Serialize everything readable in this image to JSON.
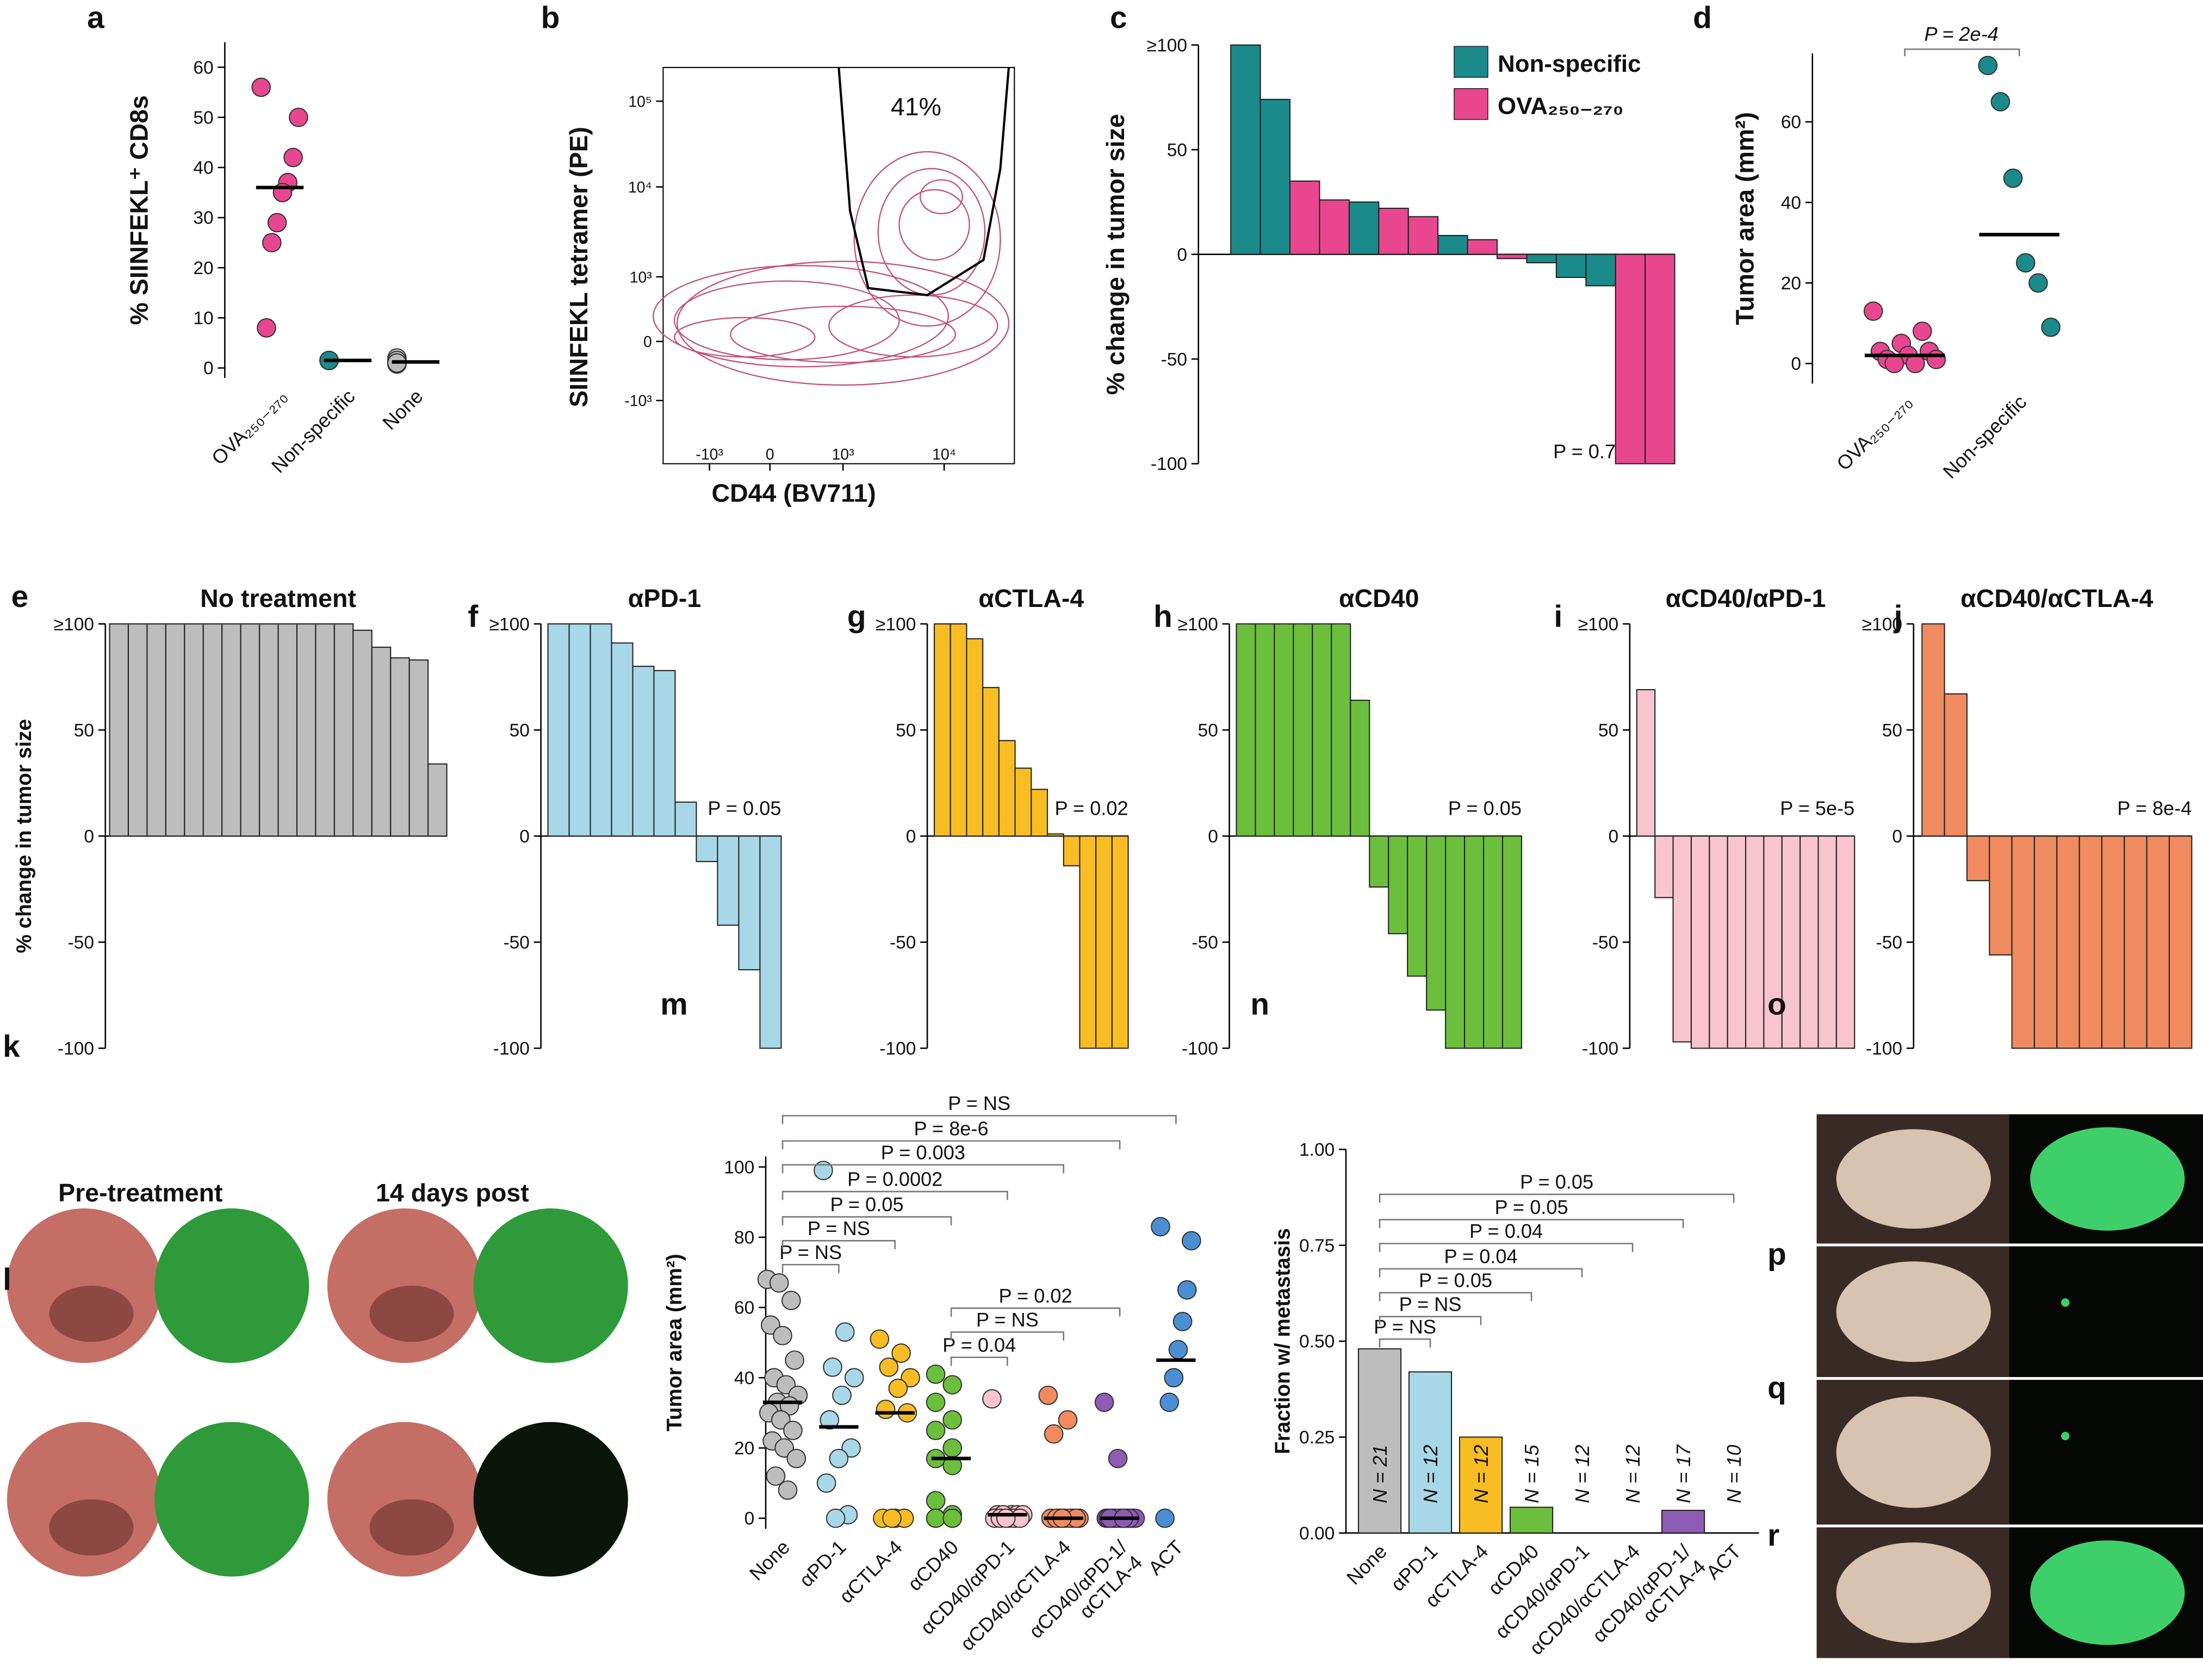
{
  "chart_data": [
    {
      "type": "strip",
      "panel": "a",
      "ylabel": "% SIINFEKL⁺ CD8s",
      "categories": [
        "OVA₂₅₀₋₂₇₀",
        "Non-specific",
        "None"
      ],
      "values": [
        [
          56,
          50,
          42,
          37,
          35,
          29,
          25,
          8
        ],
        [
          1.5,
          1.5,
          1.5,
          1.5,
          1.5,
          1.5,
          1.5
        ],
        [
          1.5,
          0.8,
          0.8,
          1.2,
          2,
          1.5,
          1
        ]
      ],
      "medians": [
        36,
        1.5,
        1.2
      ],
      "colors": [
        "#e8478f",
        "#1a8a8a",
        "#bdbdbd"
      ],
      "ylim": [
        -2,
        65
      ],
      "yticks": [
        0,
        10,
        20,
        30,
        40,
        50,
        60
      ]
    },
    {
      "type": "contour",
      "panel": "b",
      "ylabel": "SIINFEKL tetramer (PE)",
      "xlabel": "CD44 (BV711)",
      "annotation": "41%",
      "yticks": [
        {
          "value": 100000,
          "label": "10⁵"
        },
        {
          "value": 10000,
          "label": "10⁴"
        },
        {
          "value": 1000,
          "label": "10³"
        },
        0,
        {
          "value": -1000,
          "label": "-10³"
        }
      ],
      "xticks": [
        {
          "value": -1000,
          "label": "-10³"
        },
        0,
        {
          "value": 1000,
          "label": "10³"
        },
        {
          "value": 10000,
          "label": "10⁴"
        }
      ]
    },
    {
      "type": "waterfall",
      "panel": "c",
      "ylabel": "% change in tumor size",
      "series": [
        {
          "name": "Non-specific",
          "color": "#1a8a8a",
          "values": [
            100,
            74,
            null,
            null,
            25,
            null,
            null,
            9,
            null,
            null,
            -4,
            -11,
            -15,
            null,
            null
          ]
        },
        {
          "name": "OVA₂₅₀₋₂₇₀",
          "color": "#e8478f",
          "values": [
            null,
            null,
            35,
            26,
            null,
            22,
            18,
            null,
            7,
            -2,
            null,
            null,
            null,
            -100,
            -100
          ]
        }
      ],
      "ylim": [
        -100,
        100
      ],
      "yticks": [
        {
          "value": 100,
          "label": "≥100"
        },
        50,
        0,
        -50,
        -100
      ],
      "annotation": "P = 0.7",
      "legend": "top-right"
    },
    {
      "type": "strip",
      "panel": "d",
      "ylabel": "Tumor area (mm²)",
      "annotation": "P = 2e-4",
      "categories": [
        "OVA₂₅₀₋₂₇₀",
        "Non-specific"
      ],
      "values": [
        [
          13,
          8,
          5,
          3,
          3,
          2,
          1,
          1,
          0,
          0
        ],
        [
          74,
          65,
          46,
          25,
          20,
          9
        ]
      ],
      "medians": [
        2,
        32
      ],
      "colors": [
        "#e8478f",
        "#1a8a8a"
      ],
      "ylim": [
        -5,
        77
      ],
      "yticks": [
        0,
        20,
        40,
        60
      ]
    },
    {
      "type": "waterfall",
      "panel": "e",
      "title": "No treatment",
      "ylabel": "% change in tumor size",
      "color": "#bdbdbd",
      "values": [
        100,
        100,
        100,
        100,
        100,
        100,
        100,
        100,
        100,
        100,
        100,
        100,
        100,
        97,
        89,
        84,
        83,
        34
      ],
      "ylim": [
        -100,
        100
      ],
      "yticks": [
        {
          "value": 100,
          "label": "≥100"
        },
        50,
        0,
        -50,
        -100
      ]
    },
    {
      "type": "waterfall",
      "panel": "f",
      "title": "αPD-1",
      "color": "#a8d8e8",
      "annotation": "P = 0.05",
      "values": [
        100,
        100,
        100,
        91,
        80,
        78,
        16,
        -12,
        -42,
        -63,
        -100
      ],
      "ylim": [
        -100,
        100
      ],
      "yticks": [
        {
          "value": 100,
          "label": "≥100"
        },
        50,
        0,
        -50,
        -100
      ]
    },
    {
      "type": "waterfall",
      "panel": "g",
      "title": "αCTLA-4",
      "color": "#f7bd23",
      "annotation": "P = 0.02",
      "values": [
        100,
        100,
        93,
        70,
        45,
        32,
        22,
        1,
        -14,
        -100,
        -100,
        -100
      ],
      "ylim": [
        -100,
        100
      ],
      "yticks": [
        {
          "value": 100,
          "label": "≥100"
        },
        50,
        0,
        -50,
        -100
      ]
    },
    {
      "type": "waterfall",
      "panel": "h",
      "title": "αCD40",
      "color": "#6cbf3c",
      "annotation": "P = 0.05",
      "values": [
        100,
        100,
        100,
        100,
        100,
        100,
        64,
        -24,
        -46,
        -66,
        -82,
        -100,
        -100,
        -100,
        -100
      ],
      "ylim": [
        -100,
        100
      ],
      "yticks": [
        {
          "value": 100,
          "label": "≥100"
        },
        50,
        0,
        -50,
        -100
      ]
    },
    {
      "type": "waterfall",
      "panel": "i",
      "title": "αCD40/αPD-1",
      "color": "#f7c4cf",
      "annotation": "P = 5e-5",
      "values": [
        69,
        -29,
        -97,
        -100,
        -100,
        -100,
        -100,
        -100,
        -100,
        -100,
        -100,
        -100
      ],
      "ylim": [
        -100,
        100
      ],
      "yticks": [
        {
          "value": 100,
          "label": "≥100"
        },
        50,
        0,
        -50,
        -100
      ]
    },
    {
      "type": "waterfall",
      "panel": "j",
      "title": "αCD40/αCTLA-4",
      "color": "#f08b5f",
      "annotation": "P = 8e-4",
      "values": [
        100,
        67,
        -21,
        -56,
        -100,
        -100,
        -100,
        -100,
        -100,
        -100,
        -100,
        -100
      ],
      "ylim": [
        -100,
        100
      ],
      "yticks": [
        {
          "value": 100,
          "label": "≥100"
        },
        50,
        0,
        -50,
        -100
      ]
    },
    {
      "type": "image",
      "panel": "k",
      "captions": [
        "Pre-treatment",
        "14 days post"
      ]
    },
    {
      "type": "image",
      "panel": "l"
    },
    {
      "type": "strip",
      "panel": "m",
      "ylabel": "Tumor area (mm²)",
      "categories": [
        "None",
        "αPD-1",
        "αCTLA-4",
        "αCD40",
        "αCD40/αPD-1",
        "αCD40/αCTLA-4",
        "αCD40/αPD-1/\nαCTLA-4",
        "ACT"
      ],
      "values": [
        [
          68,
          67,
          62,
          55,
          52,
          45,
          40,
          38,
          35,
          33,
          32,
          30,
          28,
          25,
          22,
          20,
          17,
          12,
          8
        ],
        [
          99,
          53,
          43,
          40,
          35,
          28,
          20,
          17,
          10,
          1,
          0
        ],
        [
          51,
          47,
          43,
          40,
          37,
          31,
          30,
          0,
          0,
          0,
          0
        ],
        [
          41,
          38,
          33,
          28,
          25,
          20,
          17,
          15,
          5,
          1,
          0,
          0,
          0,
          0
        ],
        [
          34,
          1,
          1,
          1,
          1,
          1,
          0,
          0,
          0,
          0,
          0,
          0
        ],
        [
          35,
          28,
          24,
          0,
          0,
          0,
          0,
          0,
          0,
          0,
          0,
          0
        ],
        [
          33,
          17,
          0,
          0,
          0,
          0,
          0,
          0,
          0,
          0,
          0,
          0,
          0,
          0,
          0,
          0,
          0
        ],
        [
          83,
          79,
          65,
          56,
          48,
          40,
          33,
          0
        ]
      ],
      "medians": [
        33,
        26,
        30,
        17,
        1,
        0,
        0,
        45
      ],
      "colors": [
        "#bdbdbd",
        "#a8d8e8",
        "#f7bd23",
        "#6cbf3c",
        "#f7c4cf",
        "#f08b5f",
        "#8e5bb5",
        "#4a8fd4"
      ],
      "ylim": [
        -3,
        103
      ],
      "yticks": [
        0,
        20,
        40,
        60,
        80,
        100
      ],
      "comparisons": [
        "P = NS",
        "P = NS",
        "P = 0.05",
        "P = 0.0002",
        "P = 0.003",
        "P = 8e-6",
        "P = NS",
        "P = 0.04",
        "P = NS",
        "P = 0.02"
      ]
    },
    {
      "type": "bar",
      "panel": "n",
      "ylabel": "Fraction w/ metastasis",
      "categories": [
        "None",
        "αPD-1",
        "αCTLA-4",
        "αCD40",
        "αCD40/αPD-1",
        "αCD40/αCTLA-4",
        "αCD40/αPD-1/\nαCTLA-4",
        "ACT"
      ],
      "values": [
        0.48,
        0.42,
        0.25,
        0.067,
        0,
        0,
        0.059,
        0
      ],
      "annotations": [
        "N = 21",
        "N = 12",
        "N = 12",
        "N = 15",
        "N = 12",
        "N = 12",
        "N = 17",
        "N = 10"
      ],
      "colors": [
        "#bdbdbd",
        "#a8d8e8",
        "#f7bd23",
        "#6cbf3c",
        "#f7c4cf",
        "#f08b5f",
        "#8e5bb5",
        "#4a8fd4"
      ],
      "ylim": [
        0,
        1
      ],
      "yticks": [
        {
          "value": 0,
          "label": "0.00"
        },
        {
          "value": 0.25,
          "label": "0.25"
        },
        {
          "value": 0.5,
          "label": "0.50"
        },
        {
          "value": 0.75,
          "label": "0.75"
        },
        {
          "value": 1,
          "label": "1.00"
        }
      ],
      "comparisons": [
        "P = NS",
        "P = NS",
        "P = 0.05",
        "P = 0.04",
        "P = 0.04",
        "P = 0.05",
        "P = 0.05"
      ]
    },
    {
      "type": "image",
      "panel": "o"
    },
    {
      "type": "image",
      "panel": "p"
    },
    {
      "type": "image",
      "panel": "q"
    },
    {
      "type": "image",
      "panel": "r"
    }
  ]
}
